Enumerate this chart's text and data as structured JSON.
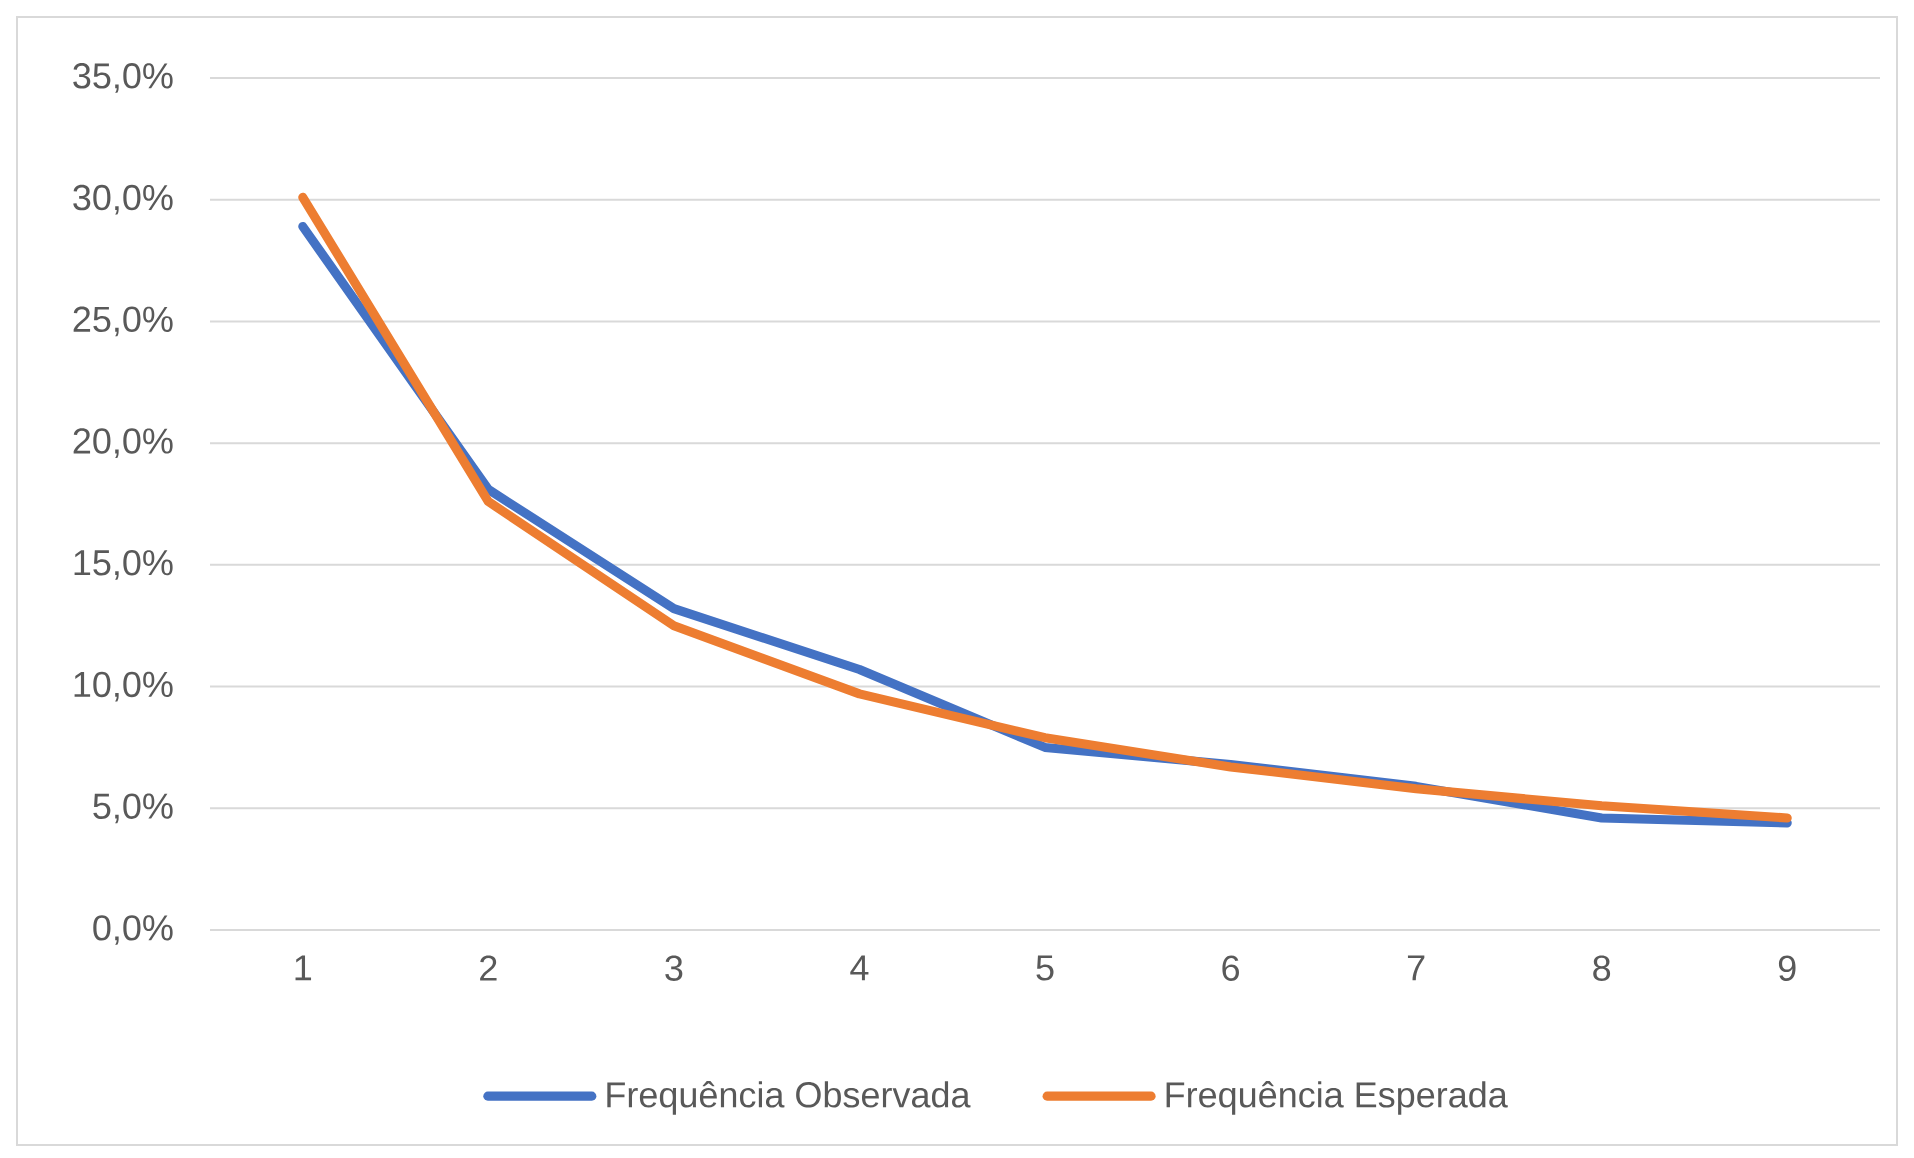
{
  "chart_data": {
    "type": "line",
    "categories": [
      "1",
      "2",
      "3",
      "4",
      "5",
      "6",
      "7",
      "8",
      "9"
    ],
    "series": [
      {
        "name": "Frequência Observada",
        "color": "#4472c4",
        "values": [
          28.9,
          18.1,
          13.2,
          10.7,
          7.5,
          6.8,
          5.9,
          4.6,
          4.4
        ]
      },
      {
        "name": "Frequência Esperada",
        "color": "#ed7d31",
        "values": [
          30.1,
          17.6,
          12.5,
          9.7,
          7.9,
          6.7,
          5.8,
          5.1,
          4.6
        ]
      }
    ],
    "ylim": [
      0,
      35
    ],
    "yticks": [
      {
        "value": 0,
        "label": "0,0%"
      },
      {
        "value": 5,
        "label": "5,0%"
      },
      {
        "value": 10,
        "label": "10,0%"
      },
      {
        "value": 15,
        "label": "15,0%"
      },
      {
        "value": 20,
        "label": "20,0%"
      },
      {
        "value": 25,
        "label": "25,0%"
      },
      {
        "value": 30,
        "label": "30,0%"
      },
      {
        "value": 35,
        "label": "35,0%"
      }
    ],
    "grid": "y",
    "legend": "bottom"
  }
}
